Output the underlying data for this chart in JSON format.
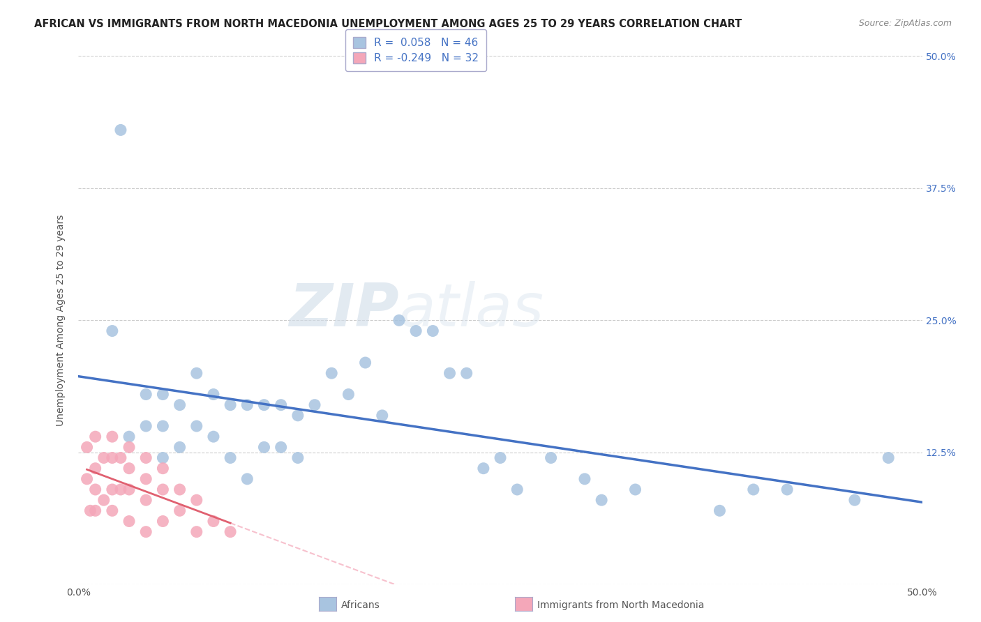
{
  "title": "AFRICAN VS IMMIGRANTS FROM NORTH MACEDONIA UNEMPLOYMENT AMONG AGES 25 TO 29 YEARS CORRELATION CHART",
  "source": "Source: ZipAtlas.com",
  "ylabel": "Unemployment Among Ages 25 to 29 years",
  "xlim": [
    0.0,
    0.5
  ],
  "ylim": [
    0.0,
    0.5
  ],
  "yticks": [
    0.0,
    0.125,
    0.25,
    0.375,
    0.5
  ],
  "ytick_labels": [
    "",
    "12.5%",
    "25.0%",
    "37.5%",
    "50.0%"
  ],
  "xticks": [
    0.0,
    0.1,
    0.2,
    0.3,
    0.4,
    0.5
  ],
  "xtick_labels": [
    "0.0%",
    "",
    "",
    "",
    "",
    "50.0%"
  ],
  "R_african": 0.058,
  "N_african": 46,
  "R_macedonian": -0.249,
  "N_macedonian": 32,
  "african_color": "#a8c4e0",
  "macedonian_color": "#f4a7b9",
  "african_line_color": "#4472c4",
  "macedonian_line_color": "#e06070",
  "macedonian_line_dashed_color": "#f4a7b9",
  "title_fontsize": 11,
  "label_fontsize": 10,
  "african_scatter_x": [
    0.02,
    0.025,
    0.03,
    0.04,
    0.04,
    0.05,
    0.05,
    0.05,
    0.06,
    0.06,
    0.07,
    0.07,
    0.08,
    0.08,
    0.09,
    0.09,
    0.1,
    0.1,
    0.11,
    0.11,
    0.12,
    0.12,
    0.13,
    0.13,
    0.14,
    0.15,
    0.16,
    0.17,
    0.18,
    0.19,
    0.2,
    0.21,
    0.22,
    0.23,
    0.24,
    0.25,
    0.26,
    0.28,
    0.3,
    0.31,
    0.33,
    0.38,
    0.4,
    0.42,
    0.46,
    0.48
  ],
  "african_scatter_y": [
    0.24,
    0.43,
    0.14,
    0.18,
    0.15,
    0.18,
    0.15,
    0.12,
    0.17,
    0.13,
    0.2,
    0.15,
    0.18,
    0.14,
    0.17,
    0.12,
    0.17,
    0.1,
    0.17,
    0.13,
    0.17,
    0.13,
    0.16,
    0.12,
    0.17,
    0.2,
    0.18,
    0.21,
    0.16,
    0.25,
    0.24,
    0.24,
    0.2,
    0.2,
    0.11,
    0.12,
    0.09,
    0.12,
    0.1,
    0.08,
    0.09,
    0.07,
    0.09,
    0.09,
    0.08,
    0.12
  ],
  "macedonian_scatter_x": [
    0.005,
    0.005,
    0.007,
    0.01,
    0.01,
    0.01,
    0.01,
    0.015,
    0.015,
    0.02,
    0.02,
    0.02,
    0.02,
    0.025,
    0.025,
    0.03,
    0.03,
    0.03,
    0.03,
    0.04,
    0.04,
    0.04,
    0.04,
    0.05,
    0.05,
    0.05,
    0.06,
    0.06,
    0.07,
    0.07,
    0.08,
    0.09
  ],
  "macedonian_scatter_y": [
    0.13,
    0.1,
    0.07,
    0.14,
    0.11,
    0.09,
    0.07,
    0.12,
    0.08,
    0.14,
    0.12,
    0.09,
    0.07,
    0.12,
    0.09,
    0.13,
    0.11,
    0.09,
    0.06,
    0.12,
    0.1,
    0.08,
    0.05,
    0.11,
    0.09,
    0.06,
    0.09,
    0.07,
    0.08,
    0.05,
    0.06,
    0.05
  ]
}
